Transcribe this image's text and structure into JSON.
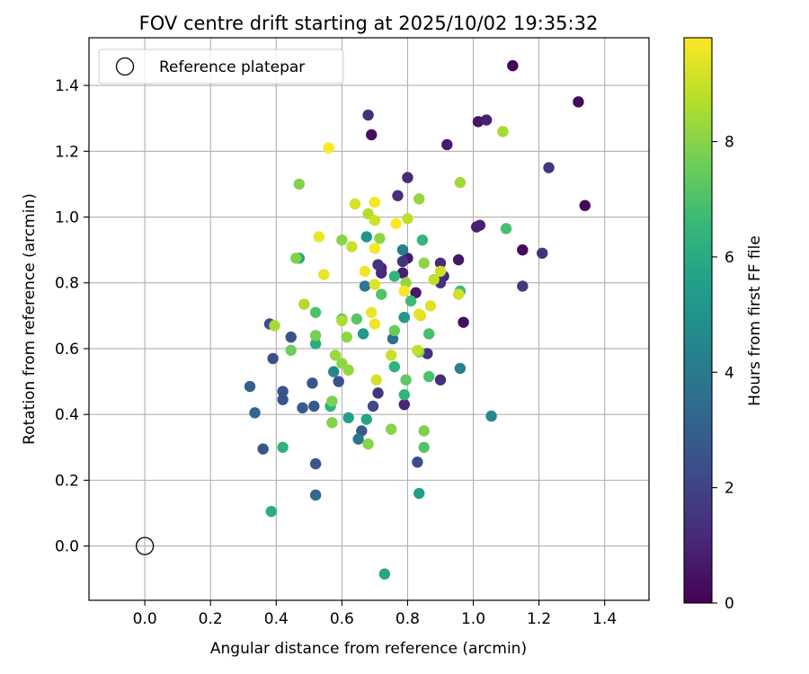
{
  "chart_data": {
    "type": "scatter",
    "title": "FOV centre drift starting at 2025/10/02 19:35:32",
    "xlabel": "Angular distance from reference (arcmin)",
    "ylabel": "Rotation from reference (arcmin)",
    "xlim": [
      -0.17,
      1.535
    ],
    "ylim": [
      -0.165,
      1.545
    ],
    "xticks": [
      0.0,
      0.2,
      0.4,
      0.6,
      0.8,
      1.0,
      1.2,
      1.4
    ],
    "xtick_labels": [
      "0.0",
      "0.2",
      "0.4",
      "0.6",
      "0.8",
      "1.0",
      "1.2",
      "1.4"
    ],
    "yticks": [
      0.0,
      0.2,
      0.4,
      0.6,
      0.8,
      1.0,
      1.2,
      1.4
    ],
    "ytick_labels": [
      "0.0",
      "0.2",
      "0.4",
      "0.6",
      "0.8",
      "1.0",
      "1.2",
      "1.4"
    ],
    "grid": true,
    "legend": {
      "position": "top-left",
      "entries": [
        "Reference platepar"
      ]
    },
    "reference_point": {
      "x": 0.0,
      "y": 0.0,
      "label": "Reference platepar"
    },
    "colorbar": {
      "label": "Hours from first FF file",
      "min": 0,
      "max": 9.8,
      "ticks": [
        0,
        2,
        4,
        6,
        8
      ],
      "tick_labels": [
        "0",
        "2",
        "4",
        "6",
        "8"
      ],
      "colormap": "viridis",
      "stops": [
        "#440154",
        "#482878",
        "#3e4989",
        "#31688e",
        "#26828e",
        "#1f9e89",
        "#35b779",
        "#6ece58",
        "#b5de2b",
        "#fde725"
      ]
    },
    "points": [
      {
        "x": 1.12,
        "y": 1.46,
        "c": 0.1
      },
      {
        "x": 1.32,
        "y": 1.35,
        "c": 0.2
      },
      {
        "x": 1.34,
        "y": 1.035,
        "c": 0.2
      },
      {
        "x": 1.015,
        "y": 1.29,
        "c": 0.6
      },
      {
        "x": 1.04,
        "y": 1.295,
        "c": 0.9
      },
      {
        "x": 0.92,
        "y": 1.22,
        "c": 0.7
      },
      {
        "x": 0.69,
        "y": 1.25,
        "c": 0.4
      },
      {
        "x": 0.68,
        "y": 1.31,
        "c": 1.3
      },
      {
        "x": 1.23,
        "y": 1.15,
        "c": 1.6
      },
      {
        "x": 1.15,
        "y": 0.9,
        "c": 0.2
      },
      {
        "x": 1.21,
        "y": 0.89,
        "c": 1.4
      },
      {
        "x": 1.15,
        "y": 0.79,
        "c": 1.6
      },
      {
        "x": 1.02,
        "y": 0.975,
        "c": 0.8
      },
      {
        "x": 1.01,
        "y": 0.97,
        "c": 0.9
      },
      {
        "x": 0.97,
        "y": 0.68,
        "c": 0.4
      },
      {
        "x": 0.955,
        "y": 0.87,
        "c": 0.6
      },
      {
        "x": 0.8,
        "y": 1.12,
        "c": 1.1
      },
      {
        "x": 0.77,
        "y": 1.065,
        "c": 1.3
      },
      {
        "x": 0.9,
        "y": 0.86,
        "c": 1.2
      },
      {
        "x": 0.91,
        "y": 0.82,
        "c": 1.2
      },
      {
        "x": 0.9,
        "y": 0.8,
        "c": 1.4
      },
      {
        "x": 0.9,
        "y": 0.505,
        "c": 1.3
      },
      {
        "x": 0.825,
        "y": 0.77,
        "c": 0.6
      },
      {
        "x": 0.8,
        "y": 0.875,
        "c": 0.7
      },
      {
        "x": 0.785,
        "y": 0.83,
        "c": 0.9
      },
      {
        "x": 0.72,
        "y": 0.845,
        "c": 1.0
      },
      {
        "x": 0.72,
        "y": 0.83,
        "c": 1.2
      },
      {
        "x": 0.71,
        "y": 0.855,
        "c": 1.4
      },
      {
        "x": 0.79,
        "y": 0.695,
        "c": 0.8
      },
      {
        "x": 0.79,
        "y": 0.43,
        "c": 1.0
      },
      {
        "x": 0.86,
        "y": 0.585,
        "c": 1.4
      },
      {
        "x": 0.71,
        "y": 0.465,
        "c": 1.5
      },
      {
        "x": 0.785,
        "y": 0.865,
        "c": 1.5
      },
      {
        "x": 0.695,
        "y": 0.425,
        "c": 2.2
      },
      {
        "x": 0.83,
        "y": 0.255,
        "c": 2.3
      },
      {
        "x": 0.38,
        "y": 0.675,
        "c": 2.3
      },
      {
        "x": 0.39,
        "y": 0.57,
        "c": 2.4
      },
      {
        "x": 0.445,
        "y": 0.635,
        "c": 2.5
      },
      {
        "x": 0.42,
        "y": 0.47,
        "c": 2.6
      },
      {
        "x": 0.42,
        "y": 0.445,
        "c": 2.6
      },
      {
        "x": 0.51,
        "y": 0.495,
        "c": 2.6
      },
      {
        "x": 0.515,
        "y": 0.425,
        "c": 2.8
      },
      {
        "x": 0.48,
        "y": 0.42,
        "c": 2.8
      },
      {
        "x": 0.52,
        "y": 0.25,
        "c": 2.6
      },
      {
        "x": 0.59,
        "y": 0.5,
        "c": 2.5
      },
      {
        "x": 0.66,
        "y": 0.35,
        "c": 2.8
      },
      {
        "x": 0.32,
        "y": 0.485,
        "c": 3.0
      },
      {
        "x": 0.335,
        "y": 0.405,
        "c": 3.2
      },
      {
        "x": 0.36,
        "y": 0.295,
        "c": 2.7
      },
      {
        "x": 0.52,
        "y": 0.155,
        "c": 3.3
      },
      {
        "x": 0.65,
        "y": 0.325,
        "c": 3.8
      },
      {
        "x": 0.67,
        "y": 0.79,
        "c": 3.9
      },
      {
        "x": 0.755,
        "y": 0.63,
        "c": 3.5
      },
      {
        "x": 0.785,
        "y": 0.9,
        "c": 4.1
      },
      {
        "x": 0.575,
        "y": 0.53,
        "c": 4.5
      },
      {
        "x": 0.96,
        "y": 0.54,
        "c": 4.3
      },
      {
        "x": 1.055,
        "y": 0.395,
        "c": 4.6
      },
      {
        "x": 0.675,
        "y": 0.94,
        "c": 5.0
      },
      {
        "x": 0.79,
        "y": 0.695,
        "c": 5.2
      },
      {
        "x": 0.665,
        "y": 0.645,
        "c": 5.3
      },
      {
        "x": 0.62,
        "y": 0.39,
        "c": 5.6
      },
      {
        "x": 0.675,
        "y": 0.385,
        "c": 5.8
      },
      {
        "x": 0.835,
        "y": 0.16,
        "c": 5.5
      },
      {
        "x": 0.73,
        "y": -0.085,
        "c": 5.8
      },
      {
        "x": 0.385,
        "y": 0.105,
        "c": 6.1
      },
      {
        "x": 0.42,
        "y": 0.3,
        "c": 6.3
      },
      {
        "x": 0.47,
        "y": 0.875,
        "c": 5.8
      },
      {
        "x": 0.52,
        "y": 0.615,
        "c": 6.1
      },
      {
        "x": 0.565,
        "y": 0.425,
        "c": 6.2
      },
      {
        "x": 0.76,
        "y": 0.545,
        "c": 6.3
      },
      {
        "x": 0.76,
        "y": 0.82,
        "c": 6.4
      },
      {
        "x": 0.845,
        "y": 0.93,
        "c": 6.5
      },
      {
        "x": 0.79,
        "y": 0.46,
        "c": 6.5
      },
      {
        "x": 0.81,
        "y": 0.745,
        "c": 6.7
      },
      {
        "x": 0.96,
        "y": 0.775,
        "c": 6.8
      },
      {
        "x": 1.1,
        "y": 0.965,
        "c": 6.9
      },
      {
        "x": 0.865,
        "y": 0.645,
        "c": 6.9
      },
      {
        "x": 0.865,
        "y": 0.515,
        "c": 7.0
      },
      {
        "x": 0.85,
        "y": 0.3,
        "c": 7.1
      },
      {
        "x": 0.52,
        "y": 0.71,
        "c": 7.0
      },
      {
        "x": 0.6,
        "y": 0.69,
        "c": 7.1
      },
      {
        "x": 0.645,
        "y": 0.69,
        "c": 7.2
      },
      {
        "x": 0.72,
        "y": 0.765,
        "c": 7.1
      },
      {
        "x": 0.795,
        "y": 0.505,
        "c": 7.3
      },
      {
        "x": 0.76,
        "y": 0.655,
        "c": 7.5
      },
      {
        "x": 0.835,
        "y": 0.59,
        "c": 7.6
      },
      {
        "x": 0.445,
        "y": 0.595,
        "c": 7.6
      },
      {
        "x": 0.47,
        "y": 1.1,
        "c": 7.9
      },
      {
        "x": 0.46,
        "y": 0.875,
        "c": 7.9
      },
      {
        "x": 0.52,
        "y": 0.64,
        "c": 7.7
      },
      {
        "x": 0.57,
        "y": 0.44,
        "c": 7.8
      },
      {
        "x": 0.57,
        "y": 0.375,
        "c": 7.9
      },
      {
        "x": 0.68,
        "y": 0.31,
        "c": 8.0
      },
      {
        "x": 0.75,
        "y": 0.355,
        "c": 8.0
      },
      {
        "x": 0.85,
        "y": 0.35,
        "c": 7.9
      },
      {
        "x": 0.6,
        "y": 0.555,
        "c": 8.1
      },
      {
        "x": 0.62,
        "y": 0.535,
        "c": 8.2
      },
      {
        "x": 0.58,
        "y": 0.58,
        "c": 8.3
      },
      {
        "x": 0.615,
        "y": 0.635,
        "c": 8.1
      },
      {
        "x": 0.6,
        "y": 0.93,
        "c": 8.0
      },
      {
        "x": 0.715,
        "y": 0.935,
        "c": 8.1
      },
      {
        "x": 0.835,
        "y": 1.055,
        "c": 8.2
      },
      {
        "x": 0.85,
        "y": 0.86,
        "c": 8.1
      },
      {
        "x": 0.795,
        "y": 0.8,
        "c": 8.2
      },
      {
        "x": 0.96,
        "y": 1.105,
        "c": 8.4
      },
      {
        "x": 1.09,
        "y": 1.26,
        "c": 8.5
      },
      {
        "x": 0.395,
        "y": 0.67,
        "c": 8.5
      },
      {
        "x": 0.485,
        "y": 0.735,
        "c": 8.6
      },
      {
        "x": 0.6,
        "y": 0.685,
        "c": 8.6
      },
      {
        "x": 0.68,
        "y": 1.01,
        "c": 8.7
      },
      {
        "x": 0.8,
        "y": 0.995,
        "c": 8.8
      },
      {
        "x": 0.88,
        "y": 0.81,
        "c": 8.9
      },
      {
        "x": 0.9,
        "y": 0.835,
        "c": 9.0
      },
      {
        "x": 0.955,
        "y": 0.765,
        "c": 9.1
      },
      {
        "x": 0.75,
        "y": 0.58,
        "c": 9.0
      },
      {
        "x": 0.83,
        "y": 0.595,
        "c": 8.9
      },
      {
        "x": 0.63,
        "y": 0.91,
        "c": 9.0
      },
      {
        "x": 0.64,
        "y": 1.04,
        "c": 9.2
      },
      {
        "x": 0.7,
        "y": 0.99,
        "c": 9.1
      },
      {
        "x": 0.705,
        "y": 0.505,
        "c": 9.2
      },
      {
        "x": 0.7,
        "y": 0.795,
        "c": 9.3
      },
      {
        "x": 0.87,
        "y": 0.73,
        "c": 9.3
      },
      {
        "x": 0.835,
        "y": 0.705,
        "c": 9.4
      },
      {
        "x": 0.84,
        "y": 0.7,
        "c": 9.4
      },
      {
        "x": 0.53,
        "y": 0.94,
        "c": 9.5
      },
      {
        "x": 0.545,
        "y": 0.825,
        "c": 9.5
      },
      {
        "x": 0.67,
        "y": 0.835,
        "c": 9.6
      },
      {
        "x": 0.69,
        "y": 0.71,
        "c": 9.5
      },
      {
        "x": 0.7,
        "y": 0.675,
        "c": 9.6
      },
      {
        "x": 0.7,
        "y": 1.045,
        "c": 9.7
      },
      {
        "x": 0.7,
        "y": 0.905,
        "c": 9.7
      },
      {
        "x": 0.79,
        "y": 0.775,
        "c": 9.7
      },
      {
        "x": 0.765,
        "y": 0.98,
        "c": 9.8
      },
      {
        "x": 0.56,
        "y": 1.21,
        "c": 9.8
      }
    ]
  }
}
